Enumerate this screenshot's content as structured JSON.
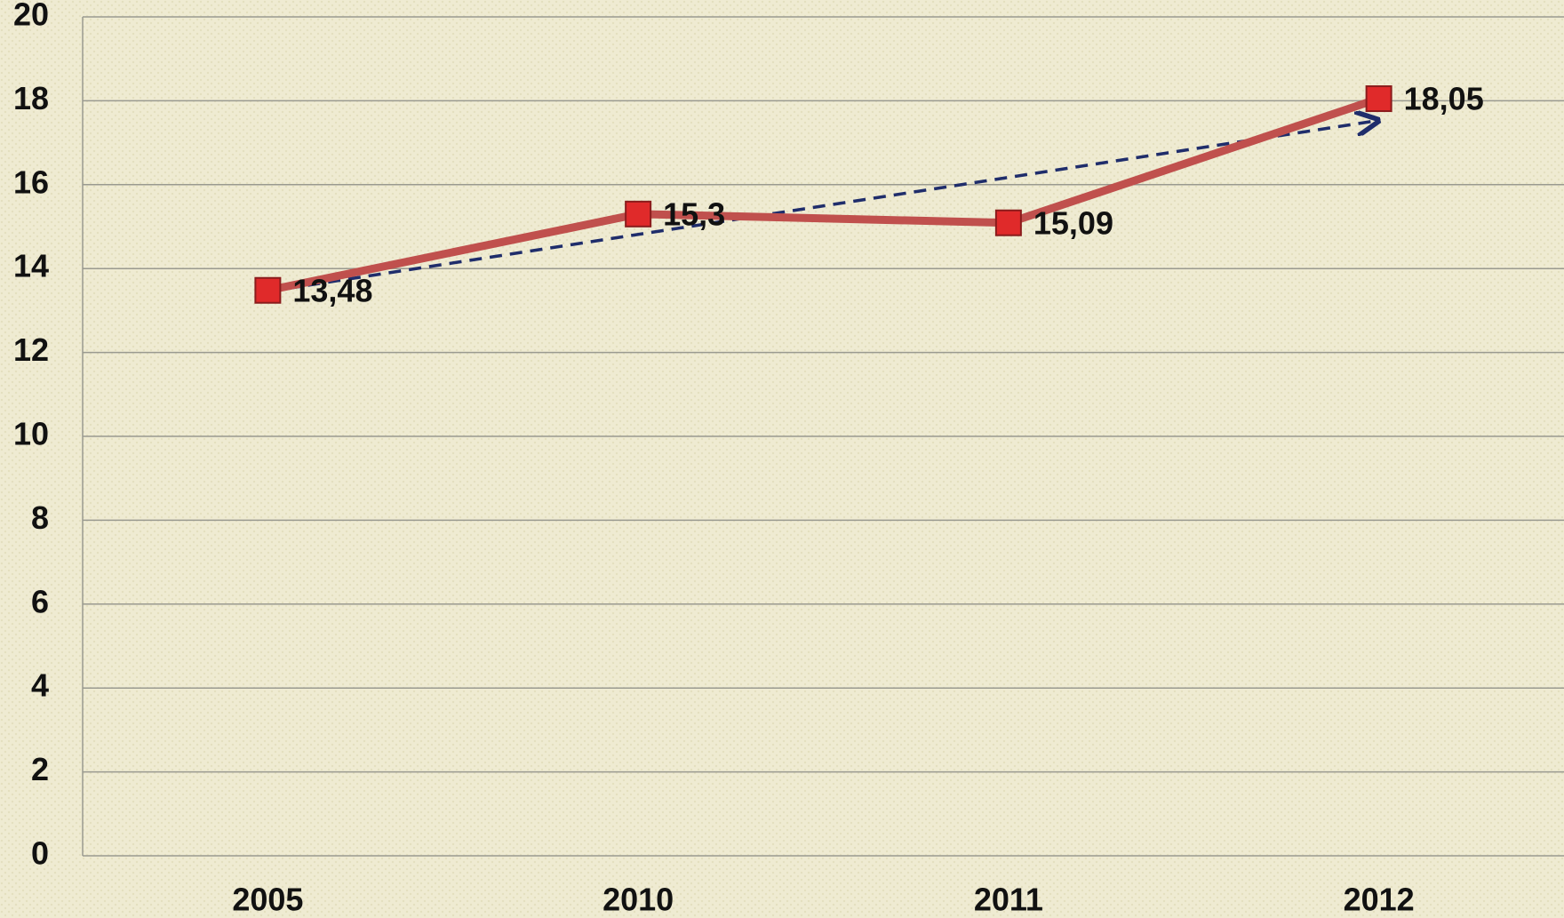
{
  "chart_data": {
    "type": "line",
    "categories": [
      "2005",
      "2010",
      "2011",
      "2012"
    ],
    "series": [
      {
        "name": null,
        "color": "#c0504d",
        "marker_color": "#e02a2a",
        "values": [
          13.48,
          15.3,
          15.09,
          18.05
        ],
        "value_labels": [
          "13,48",
          "15,3",
          "15,09",
          "18,05"
        ]
      }
    ],
    "ylim": [
      0,
      20
    ],
    "yticks": [
      0,
      2,
      4,
      6,
      8,
      10,
      12,
      14,
      16,
      18,
      20
    ],
    "grid": true
  }
}
